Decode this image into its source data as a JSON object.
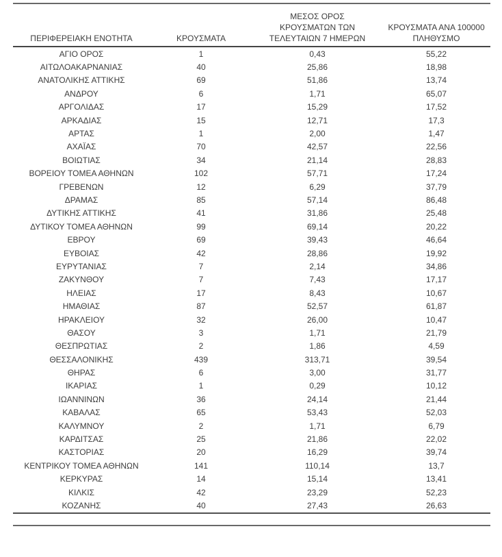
{
  "table": {
    "columns": [
      {
        "label": "ΠΕΡΙΦΕΡΕΙΑΚΗ ΕΝΟΤΗΤΑ"
      },
      {
        "label": "ΚΡΟΥΣΜΑΤΑ"
      },
      {
        "label": "ΜΕΣΟΣ ΟΡΟΣ\nΚΡΟΥΣΜΑΤΩΝ ΤΩΝ\nΤΕΛΕΥΤΑΙΩΝ 7 ΗΜΕΡΩΝ"
      },
      {
        "label": "ΚΡΟΥΣΜΑΤΑ ΑΝΑ 100000\nΠΛΗΘΥΣΜΟ"
      }
    ],
    "rows": [
      [
        "ΑΓΙΟ ΟΡΟΣ",
        "1",
        "0,43",
        "55,22"
      ],
      [
        "ΑΙΤΩΛΟΑΚΑΡΝΑΝΙΑΣ",
        "40",
        "25,86",
        "18,98"
      ],
      [
        "ΑΝΑΤΟΛΙΚΗΣ ΑΤΤΙΚΗΣ",
        "69",
        "51,86",
        "13,74"
      ],
      [
        "ΑΝΔΡΟΥ",
        "6",
        "1,71",
        "65,07"
      ],
      [
        "ΑΡΓΟΛΙΔΑΣ",
        "17",
        "15,29",
        "17,52"
      ],
      [
        "ΑΡΚΑΔΙΑΣ",
        "15",
        "12,71",
        "17,3"
      ],
      [
        "ΑΡΤΑΣ",
        "1",
        "2,00",
        "1,47"
      ],
      [
        "ΑΧΑΪΑΣ",
        "70",
        "42,57",
        "22,56"
      ],
      [
        "ΒΟΙΩΤΙΑΣ",
        "34",
        "21,14",
        "28,83"
      ],
      [
        "ΒΟΡΕΙΟΥ ΤΟΜΕΑ ΑΘΗΝΩΝ",
        "102",
        "57,71",
        "17,24"
      ],
      [
        "ΓΡΕΒΕΝΩΝ",
        "12",
        "6,29",
        "37,79"
      ],
      [
        "ΔΡΑΜΑΣ",
        "85",
        "57,14",
        "86,48"
      ],
      [
        "ΔΥΤΙΚΗΣ ΑΤΤΙΚΗΣ",
        "41",
        "31,86",
        "25,48"
      ],
      [
        "ΔΥΤΙΚΟΥ ΤΟΜΕΑ ΑΘΗΝΩΝ",
        "99",
        "69,14",
        "20,22"
      ],
      [
        "ΕΒΡΟΥ",
        "69",
        "39,43",
        "46,64"
      ],
      [
        "ΕΥΒΟΙΑΣ",
        "42",
        "28,86",
        "19,92"
      ],
      [
        "ΕΥΡΥΤΑΝΙΑΣ",
        "7",
        "2,14",
        "34,86"
      ],
      [
        "ΖΑΚΥΝΘΟΥ",
        "7",
        "7,43",
        "17,17"
      ],
      [
        "ΗΛΕΙΑΣ",
        "17",
        "8,43",
        "10,67"
      ],
      [
        "ΗΜΑΘΙΑΣ",
        "87",
        "52,57",
        "61,87"
      ],
      [
        "ΗΡΑΚΛΕΙΟΥ",
        "32",
        "26,00",
        "10,47"
      ],
      [
        "ΘΑΣΟΥ",
        "3",
        "1,71",
        "21,79"
      ],
      [
        "ΘΕΣΠΡΩΤΙΑΣ",
        "2",
        "1,86",
        "4,59"
      ],
      [
        "ΘΕΣΣΑΛΟΝΙΚΗΣ",
        "439",
        "313,71",
        "39,54"
      ],
      [
        "ΘΗΡΑΣ",
        "6",
        "3,00",
        "31,77"
      ],
      [
        "ΙΚΑΡΙΑΣ",
        "1",
        "0,29",
        "10,12"
      ],
      [
        "ΙΩΑΝΝΙΝΩΝ",
        "36",
        "24,14",
        "21,44"
      ],
      [
        "ΚΑΒΑΛΑΣ",
        "65",
        "53,43",
        "52,03"
      ],
      [
        "ΚΑΛΥΜΝΟΥ",
        "2",
        "1,71",
        "6,79"
      ],
      [
        "ΚΑΡΔΙΤΣΑΣ",
        "25",
        "21,86",
        "22,02"
      ],
      [
        "ΚΑΣΤΟΡΙΑΣ",
        "20",
        "16,29",
        "39,74"
      ],
      [
        "ΚΕΝΤΡΙΚΟΥ ΤΟΜΕΑ ΑΘΗΝΩΝ",
        "141",
        "110,14",
        "13,7"
      ],
      [
        "ΚΕΡΚΥΡΑΣ",
        "14",
        "15,14",
        "13,41"
      ],
      [
        "ΚΙΛΚΙΣ",
        "42",
        "23,29",
        "52,23"
      ],
      [
        "ΚΟΖΑΝΗΣ",
        "40",
        "27,43",
        "26,63"
      ]
    ],
    "colors": {
      "text": "#3d3d3d",
      "rule": "#4a4a4a",
      "background": "#ffffff"
    }
  }
}
